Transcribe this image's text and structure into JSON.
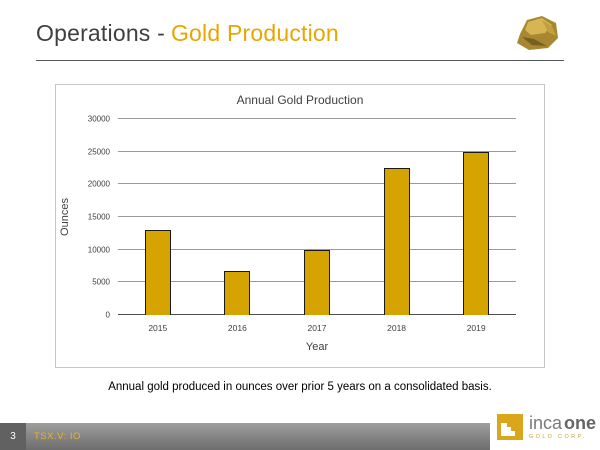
{
  "slide": {
    "title_prefix": "Operations -",
    "title_highlight": "Gold Production",
    "caption": "Annual gold produced in ounces over prior 5 years on a consolidated basis."
  },
  "footer": {
    "page_number": "3",
    "ticker": "TSX.V: IO",
    "logo_inca": "inca",
    "logo_one": "one",
    "logo_sub": "GOLD CORP."
  },
  "colors": {
    "accent_gold": "#E8A600",
    "bar_fill": "#D5A400",
    "bar_border": "#1A1A1A",
    "title_gray": "#3F3F3F",
    "footer_gray": "#7D7D7D"
  },
  "chart_data": {
    "type": "bar",
    "title": "Annual Gold Production",
    "xlabel": "Year",
    "ylabel": "Ounces",
    "categories": [
      "2015",
      "2016",
      "2017",
      "2018",
      "2019"
    ],
    "values": [
      13000,
      6700,
      10000,
      22500,
      25000
    ],
    "ylim": [
      0,
      30000
    ],
    "ytick_step": 5000,
    "grid": true,
    "legend": "none"
  }
}
